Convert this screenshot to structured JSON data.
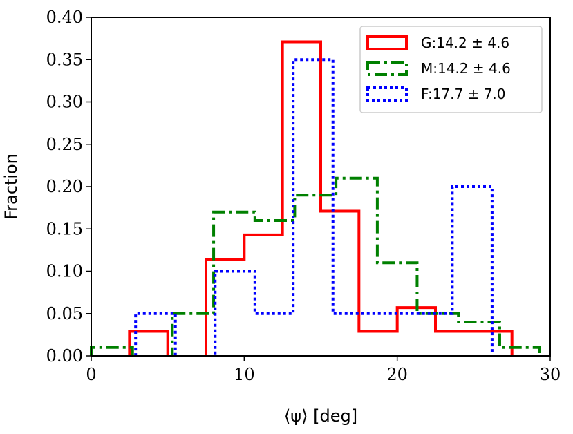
{
  "chart_data": {
    "type": "histogram-step",
    "xlabel": "⟨ψ⟩ [deg]",
    "ylabel": "Fraction",
    "xlim": [
      0,
      30
    ],
    "ylim": [
      0,
      0.4
    ],
    "xticks": [
      0,
      10,
      20,
      30
    ],
    "xtick_labels": [
      "0",
      "10",
      "20",
      "30"
    ],
    "yticks": [
      0,
      0.05,
      0.1,
      0.15,
      0.2,
      0.25,
      0.3,
      0.35,
      0.4
    ],
    "ytick_labels": [
      "0.00",
      "0.05",
      "0.10",
      "0.15",
      "0.20",
      "0.25",
      "0.30",
      "0.35",
      "0.40"
    ],
    "legend_position": "top-right",
    "series": [
      {
        "name": "G:14.2 ± 4.6",
        "color": "#ff0000",
        "style": "solid",
        "edges": [
          0,
          2.5,
          5,
          7.5,
          10,
          12.5,
          15,
          17.5,
          20,
          22.5,
          25,
          27.5,
          30
        ],
        "values": [
          0.0,
          0.029,
          0.0,
          0.114,
          0.143,
          0.371,
          0.171,
          0.029,
          0.057,
          0.029,
          0.029,
          0.0
        ]
      },
      {
        "name": "M:14.2 ± 4.6",
        "color": "#008000",
        "style": "dashdot",
        "edges": [
          0,
          2.7,
          5.3,
          8.0,
          10.7,
          13.3,
          16.0,
          18.7,
          21.3,
          24.0,
          26.7,
          29.3
        ],
        "values": [
          0.01,
          0.0,
          0.05,
          0.17,
          0.16,
          0.19,
          0.21,
          0.11,
          0.05,
          0.04,
          0.01
        ]
      },
      {
        "name": "F:17.7 ± 7.0",
        "color": "#0000ff",
        "style": "dotted",
        "edges": [
          0,
          2.9,
          5.5,
          8.1,
          10.7,
          13.2,
          15.8,
          18.4,
          21.0,
          23.6,
          26.2
        ],
        "values": [
          0.0,
          0.05,
          0.0,
          0.1,
          0.05,
          0.35,
          0.05,
          0.05,
          0.05,
          0.2
        ]
      }
    ]
  }
}
